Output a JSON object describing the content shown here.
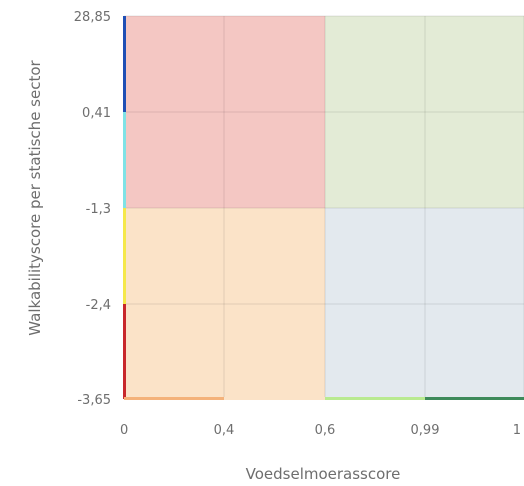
{
  "chart_data": {
    "type": "heatmap",
    "title": "",
    "xlabel": "Voedselmoerasscore",
    "ylabel": "Walkabilityscore per statische sector",
    "x_ticks": [
      "0",
      "0,4",
      "0,6",
      "0,99",
      "1"
    ],
    "y_ticks": [
      "28,85",
      "0,41",
      "-1,3",
      "-2,4",
      "-3,65"
    ],
    "quadrants": [
      {
        "x_range": [
          "0",
          "0,6"
        ],
        "y_range": [
          "-1,3",
          "28,85"
        ],
        "color": "#f4c7c3"
      },
      {
        "x_range": [
          "0,6",
          "1"
        ],
        "y_range": [
          "-1,3",
          "28,85"
        ],
        "color": "#e3ebd6"
      },
      {
        "x_range": [
          "0",
          "0,6"
        ],
        "y_range": [
          "-3,65",
          "-1,3"
        ],
        "color": "#fbe3c8"
      },
      {
        "x_range": [
          "0,6",
          "1"
        ],
        "y_range": [
          "-3,65",
          "-1,3"
        ],
        "color": "#e3e9ee"
      }
    ],
    "y_legend_colors": [
      {
        "from": "0,41",
        "to": "28,85",
        "color": "#1f4fb5"
      },
      {
        "from": "-1,3",
        "to": "0,41",
        "color": "#7fe3e6"
      },
      {
        "from": "-2,4",
        "to": "-1,3",
        "color": "#f5e84a"
      },
      {
        "from": "-3,65",
        "to": "-2,4",
        "color": "#c8272b"
      }
    ],
    "x_legend_colors": [
      {
        "from": "0",
        "to": "0,4",
        "color": "#f4b27a"
      },
      {
        "from": "0,4",
        "to": "0,6",
        "color": "#fbe3c8"
      },
      {
        "from": "0,6",
        "to": "0,99",
        "color": "#b9ea90"
      },
      {
        "from": "0,99",
        "to": "1",
        "color": "#3e8a5a"
      }
    ],
    "grid": true
  }
}
